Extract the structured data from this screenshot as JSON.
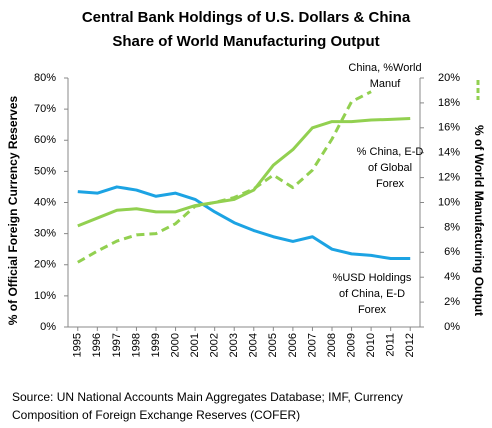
{
  "chart_data": {
    "type": "line",
    "title": [
      "Central Bank Holdings of U.S. Dollars & China",
      "Share of World Manufacturing Output"
    ],
    "y_label": "% of Official Foreign Currency Reserves",
    "y2_label": "% of World Manufacturing Output",
    "source": [
      "Source: UN National Accounts Main Aggregates Database; IMF, Currency",
      "Composition of Foreign Exchange Reserves (COFER)"
    ],
    "categories": [
      "1995",
      "1996",
      "1997",
      "1998",
      "1999",
      "2000",
      "2001",
      "2002",
      "2003",
      "2004",
      "2005",
      "2006",
      "2007",
      "2008",
      "2009",
      "2010",
      "2011",
      "2012"
    ],
    "ylim": [
      0,
      80
    ],
    "yticks": [
      {
        "value": 0,
        "label": "0%"
      },
      {
        "value": 10,
        "label": "10%"
      },
      {
        "value": 20,
        "label": "20%"
      },
      {
        "value": 30,
        "label": "30%"
      },
      {
        "value": 40,
        "label": "40%"
      },
      {
        "value": 50,
        "label": "50%"
      },
      {
        "value": 60,
        "label": "60%"
      },
      {
        "value": 70,
        "label": "70%"
      },
      {
        "value": 80,
        "label": "80%"
      }
    ],
    "y2lim": [
      0,
      20
    ],
    "y2ticks": [
      {
        "value": 0,
        "label": "0%"
      },
      {
        "value": 2,
        "label": "2%"
      },
      {
        "value": 4,
        "label": "4%"
      },
      {
        "value": 6,
        "label": "6%"
      },
      {
        "value": 8,
        "label": "8%"
      },
      {
        "value": 10,
        "label": "10%"
      },
      {
        "value": 12,
        "label": "12%"
      },
      {
        "value": 14,
        "label": "14%"
      },
      {
        "value": 16,
        "label": "16%"
      },
      {
        "value": 18,
        "label": "18%"
      },
      {
        "value": 20,
        "label": "20%"
      }
    ],
    "grid": false,
    "series": [
      {
        "name": [
          "%USD Holdings",
          "of China, E-D",
          "Forex"
        ],
        "color": "#1ca3e3",
        "axis": "y",
        "dashed": false,
        "values": [
          43.5,
          43,
          45,
          44,
          42,
          43,
          41,
          37,
          33.5,
          31,
          29,
          27.5,
          29,
          25,
          23.5,
          23,
          22,
          22
        ]
      },
      {
        "name": [
          "% China, E-D",
          "of  Global",
          "Forex"
        ],
        "color": "#92d050",
        "axis": "y",
        "dashed": false,
        "values": [
          32.5,
          35,
          37.5,
          38,
          37,
          37,
          39,
          40,
          41,
          44,
          52,
          57,
          64,
          66,
          66,
          66.5,
          66.7,
          67
        ]
      },
      {
        "name": [
          "China, %World",
          "Manuf"
        ],
        "color": "#92d050",
        "axis": "y2",
        "dashed": true,
        "values": [
          5.2,
          6.1,
          6.9,
          7.4,
          7.5,
          8.3,
          9.7,
          10.0,
          10.4,
          11.1,
          12.2,
          11.2,
          12.6,
          15.1,
          18.1,
          18.9,
          null,
          null
        ]
      }
    ]
  }
}
